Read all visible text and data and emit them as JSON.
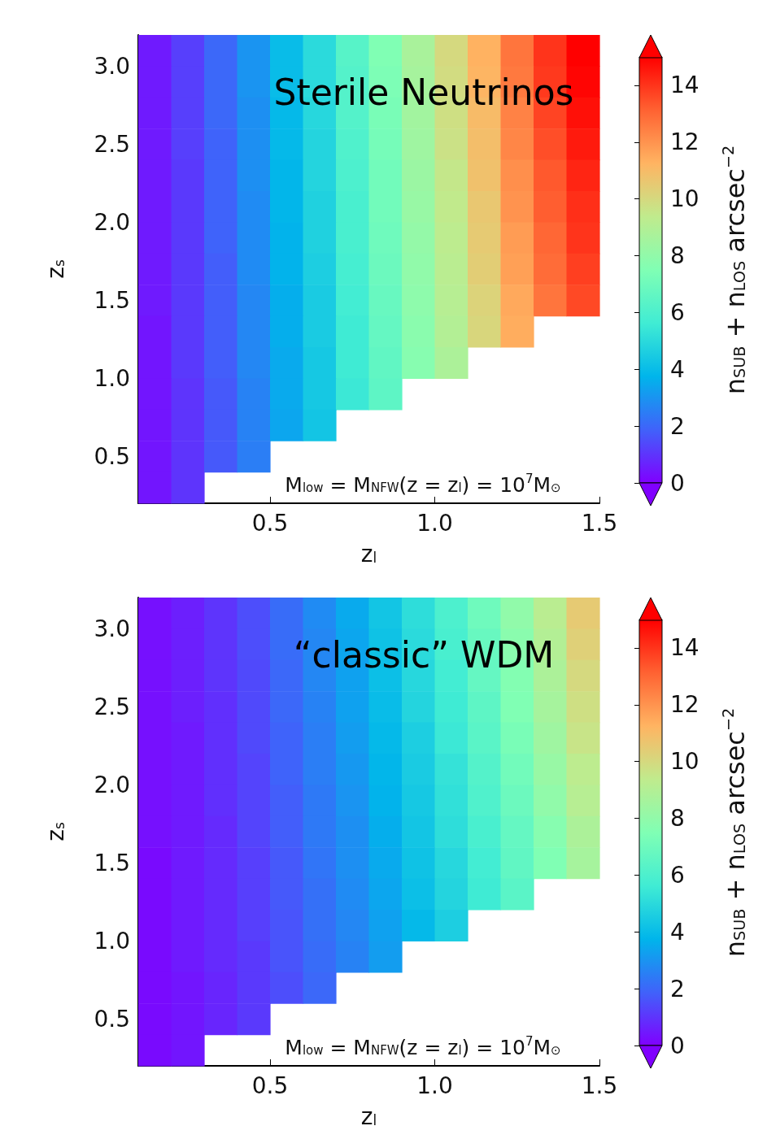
{
  "chart_data": [
    {
      "type": "heatmap",
      "title": "Sterile Neutrinos",
      "xlabel": "z$_{l}$",
      "ylabel": "z$_{s}$",
      "clabel": "n$_{SUB}$ + n$_{LOS}$ arcsec$^{−2}$",
      "annotations": [
        "M$_{low}$ = M$_{NFW}$(z = z$_{l}$) = 10$^{7}$M$_{⊙}$"
      ],
      "x": [
        0.15,
        0.25,
        0.35,
        0.45,
        0.55,
        0.65,
        0.75,
        0.85,
        0.95,
        1.05,
        1.15,
        1.25,
        1.35,
        1.45
      ],
      "y": [
        3.1,
        2.9,
        2.7,
        2.5,
        2.3,
        2.1,
        1.9,
        1.7,
        1.5,
        1.3,
        1.1,
        0.9,
        0.7,
        0.5,
        0.3
      ],
      "xlim": [
        0.1,
        1.5
      ],
      "ylim": [
        0.2,
        3.2
      ],
      "xticks": [
        {
          "value": 0.5,
          "label": "0.5"
        },
        {
          "value": 1.0,
          "label": "1.0"
        },
        {
          "value": 1.5,
          "label": "1.5"
        }
      ],
      "yticks": [
        {
          "value": 0.5,
          "label": "0.5"
        },
        {
          "value": 1.0,
          "label": "1.0"
        },
        {
          "value": 1.5,
          "label": "1.5"
        },
        {
          "value": 2.0,
          "label": "2.0"
        },
        {
          "value": 2.5,
          "label": "2.5"
        },
        {
          "value": 3.0,
          "label": "3.0"
        }
      ],
      "clim": [
        0,
        15
      ],
      "cticks": [
        0,
        2,
        4,
        6,
        8,
        10,
        12,
        14
      ],
      "cells": [
        [
          0.5,
          1.2,
          2.0,
          3.0,
          4.0,
          5.0,
          6.3,
          7.5,
          8.7,
          10.0,
          11.3,
          12.7,
          14.0,
          15.0
        ],
        [
          0.5,
          1.2,
          2.0,
          3.0,
          4.0,
          5.0,
          6.2,
          7.4,
          8.6,
          9.9,
          11.2,
          12.6,
          13.9,
          14.9
        ],
        [
          0.5,
          1.2,
          2.0,
          2.9,
          3.9,
          4.9,
          6.2,
          7.3,
          8.5,
          9.8,
          11.0,
          12.4,
          13.7,
          14.7
        ],
        [
          0.5,
          1.2,
          1.9,
          2.9,
          3.9,
          4.8,
          6.1,
          7.2,
          8.4,
          9.7,
          10.9,
          12.3,
          13.5,
          14.5
        ],
        [
          0.5,
          1.1,
          1.9,
          2.9,
          3.8,
          4.8,
          6.0,
          7.1,
          8.3,
          9.5,
          10.8,
          12.1,
          13.3,
          14.3
        ],
        [
          0.5,
          1.1,
          1.9,
          2.8,
          3.8,
          4.7,
          5.9,
          7.1,
          8.2,
          9.4,
          10.6,
          12.0,
          13.2,
          14.1
        ],
        [
          0.5,
          1.1,
          1.9,
          2.8,
          3.7,
          4.7,
          5.9,
          7.0,
          8.1,
          9.3,
          10.5,
          11.8,
          13.0,
          14.0
        ],
        [
          0.5,
          1.1,
          1.8,
          2.8,
          3.7,
          4.6,
          5.8,
          6.9,
          8.0,
          9.2,
          10.4,
          11.7,
          12.9,
          13.8
        ],
        [
          0.5,
          1.1,
          1.8,
          2.7,
          3.6,
          4.5,
          5.7,
          6.8,
          7.9,
          9.1,
          10.2,
          11.5,
          12.7,
          13.6
        ],
        [
          0.4,
          1.1,
          1.8,
          2.7,
          3.6,
          4.5,
          5.6,
          6.7,
          7.8,
          9.0,
          10.1,
          11.4,
          null,
          null
        ],
        [
          0.4,
          1.1,
          1.8,
          2.7,
          3.5,
          4.4,
          5.6,
          6.6,
          7.7,
          8.8,
          null,
          null,
          null,
          null
        ],
        [
          0.4,
          1.0,
          1.7,
          2.6,
          3.5,
          4.4,
          5.5,
          6.5,
          null,
          null,
          null,
          null,
          null,
          null
        ],
        [
          0.4,
          1.0,
          1.7,
          2.6,
          3.4,
          4.3,
          null,
          null,
          null,
          null,
          null,
          null,
          null,
          null
        ],
        [
          0.4,
          1.0,
          1.7,
          2.5,
          null,
          null,
          null,
          null,
          null,
          null,
          null,
          null,
          null,
          null
        ],
        [
          0.4,
          1.0,
          null,
          null,
          null,
          null,
          null,
          null,
          null,
          null,
          null,
          null,
          null,
          null
        ]
      ]
    },
    {
      "type": "heatmap",
      "title": "“classic” WDM",
      "xlabel": "z$_{l}$",
      "ylabel": "z$_{s}$",
      "clabel": "n$_{SUB}$ + n$_{LOS}$ arcsec$^{−2}$",
      "annotations": [
        "M$_{low}$ = M$_{NFW}$(z = z$_{l}$) = 10$^{7}$M$_{⊙}$"
      ],
      "x": [
        0.15,
        0.25,
        0.35,
        0.45,
        0.55,
        0.65,
        0.75,
        0.85,
        0.95,
        1.05,
        1.15,
        1.25,
        1.35,
        1.45
      ],
      "y": [
        3.1,
        2.9,
        2.7,
        2.5,
        2.3,
        2.1,
        1.9,
        1.7,
        1.5,
        1.3,
        1.1,
        0.9,
        0.7,
        0.5,
        0.3
      ],
      "xlim": [
        0.1,
        1.5
      ],
      "ylim": [
        0.2,
        3.2
      ],
      "xticks": [
        {
          "value": 0.5,
          "label": "0.5"
        },
        {
          "value": 1.0,
          "label": "1.0"
        },
        {
          "value": 1.5,
          "label": "1.5"
        }
      ],
      "yticks": [
        {
          "value": 0.5,
          "label": "0.5"
        },
        {
          "value": 1.0,
          "label": "1.0"
        },
        {
          "value": 1.5,
          "label": "1.5"
        },
        {
          "value": 2.0,
          "label": "2.0"
        },
        {
          "value": 2.5,
          "label": "2.5"
        },
        {
          "value": 3.0,
          "label": "3.0"
        }
      ],
      "clim": [
        0,
        15
      ],
      "cticks": [
        0,
        2,
        4,
        6,
        8,
        10,
        12,
        14
      ],
      "cells": [
        [
          0.3,
          0.6,
          1.0,
          1.5,
          2.1,
          2.8,
          3.5,
          4.3,
          5.1,
          6.0,
          7.0,
          8.0,
          9.2,
          10.5
        ],
        [
          0.3,
          0.6,
          1.0,
          1.5,
          2.1,
          2.7,
          3.4,
          4.2,
          5.0,
          5.9,
          6.8,
          7.8,
          9.0,
          10.3
        ],
        [
          0.3,
          0.6,
          1.0,
          1.4,
          2.0,
          2.7,
          3.3,
          4.1,
          4.9,
          5.7,
          6.7,
          7.6,
          8.8,
          10.0
        ],
        [
          0.3,
          0.6,
          0.9,
          1.4,
          2.0,
          2.6,
          3.3,
          4.0,
          4.8,
          5.6,
          6.5,
          7.5,
          8.6,
          9.8
        ],
        [
          0.3,
          0.5,
          0.9,
          1.4,
          1.9,
          2.5,
          3.2,
          3.9,
          4.6,
          5.5,
          6.4,
          7.3,
          8.4,
          9.6
        ],
        [
          0.3,
          0.5,
          0.9,
          1.3,
          1.9,
          2.5,
          3.1,
          3.8,
          4.5,
          5.3,
          6.2,
          7.1,
          8.2,
          9.3
        ],
        [
          0.3,
          0.5,
          0.9,
          1.3,
          1.8,
          2.4,
          3.0,
          3.7,
          4.4,
          5.2,
          6.1,
          6.9,
          8.0,
          9.1
        ],
        [
          0.3,
          0.5,
          0.8,
          1.3,
          1.8,
          2.4,
          2.9,
          3.6,
          4.3,
          5.1,
          5.9,
          6.7,
          7.7,
          8.8
        ],
        [
          0.2,
          0.5,
          0.8,
          1.2,
          1.7,
          2.3,
          2.9,
          3.5,
          4.2,
          4.9,
          5.7,
          6.6,
          7.5,
          8.6
        ],
        [
          0.2,
          0.5,
          0.8,
          1.2,
          1.7,
          2.2,
          2.8,
          3.4,
          4.1,
          4.8,
          5.6,
          6.4,
          null,
          null
        ],
        [
          0.2,
          0.5,
          0.8,
          1.2,
          1.6,
          2.2,
          2.7,
          3.3,
          3.9,
          4.6,
          null,
          null,
          null,
          null
        ],
        [
          0.2,
          0.5,
          0.8,
          1.1,
          1.6,
          2.1,
          2.6,
          3.2,
          null,
          null,
          null,
          null,
          null,
          null
        ],
        [
          0.2,
          0.4,
          0.7,
          1.1,
          1.5,
          2.0,
          null,
          null,
          null,
          null,
          null,
          null,
          null,
          null
        ],
        [
          0.2,
          0.4,
          0.7,
          1.1,
          null,
          null,
          null,
          null,
          null,
          null,
          null,
          null,
          null,
          null
        ],
        [
          0.2,
          0.4,
          null,
          null,
          null,
          null,
          null,
          null,
          null,
          null,
          null,
          null,
          null,
          null
        ]
      ]
    }
  ]
}
